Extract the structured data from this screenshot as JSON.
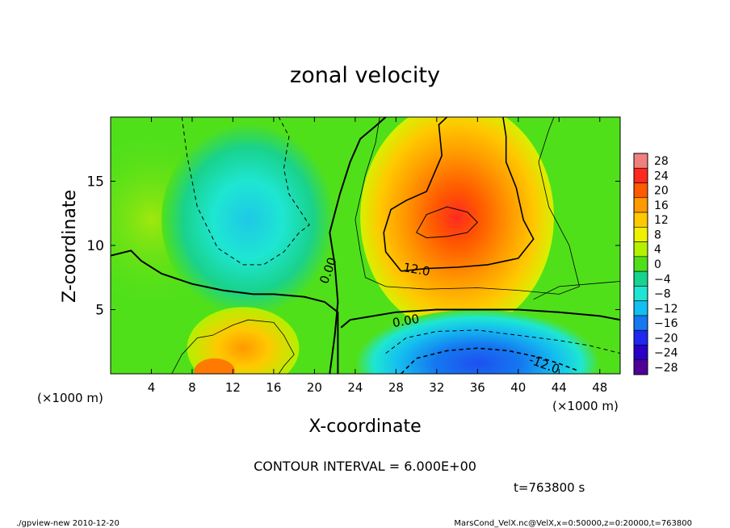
{
  "chart_data": {
    "type": "heatmap",
    "title": "zonal velocity",
    "xlabel": "X-coordinate",
    "ylabel": "Z-coordinate",
    "x_unit_note": "(×1000 m)",
    "x_unit_note_right": "(×1000 m)",
    "xlim": [
      0,
      50
    ],
    "ylim": [
      0,
      20
    ],
    "x_ticks": [
      4,
      8,
      12,
      16,
      20,
      24,
      28,
      32,
      36,
      40,
      44,
      48
    ],
    "y_ticks": [
      5,
      10,
      15
    ],
    "grid": false,
    "colorbar": {
      "position": "right",
      "levels": [
        28,
        24,
        20,
        16,
        12,
        8,
        4,
        0,
        -4,
        -8,
        -12,
        -16,
        -20,
        -24,
        -28
      ],
      "label_text": [
        "28",
        "24",
        "20",
        "16",
        "12",
        "8",
        "4",
        "0",
        "−4",
        "−8",
        "−12",
        "−16",
        "−20",
        "−24",
        "−28"
      ],
      "colors": [
        "#f08080",
        "#ff2a1f",
        "#ff5a00",
        "#ff9900",
        "#ffc800",
        "#f0f000",
        "#b4f000",
        "#50e01a",
        "#19d28c",
        "#1ee6d2",
        "#14bef0",
        "#1478f0",
        "#1e28f0",
        "#2800c8",
        "#500096"
      ]
    },
    "features": [
      {
        "name": "positive maximum",
        "x": 33.5,
        "z": 11.5,
        "value": 22
      },
      {
        "name": "negative minimum",
        "x": 35,
        "z": 1.0,
        "value": -16
      },
      {
        "name": "negative region upper left",
        "x": 14,
        "z": 11.5,
        "value": -9
      },
      {
        "name": "positive region lower left",
        "x": 10.5,
        "z": 0.5,
        "value": 16
      }
    ],
    "contour_labels": [
      "0.00",
      "12.0",
      "0.00",
      "-12.0"
    ]
  },
  "annotations": {
    "contour_interval": "CONTOUR INTERVAL = 6.000E+00",
    "time": "t=763800 s",
    "footer_left": "./gpview-new  2010-12-20",
    "footer_right": "MarsCond_VelX.nc@VelX,x=0:50000,z=0:20000,t=763800"
  }
}
